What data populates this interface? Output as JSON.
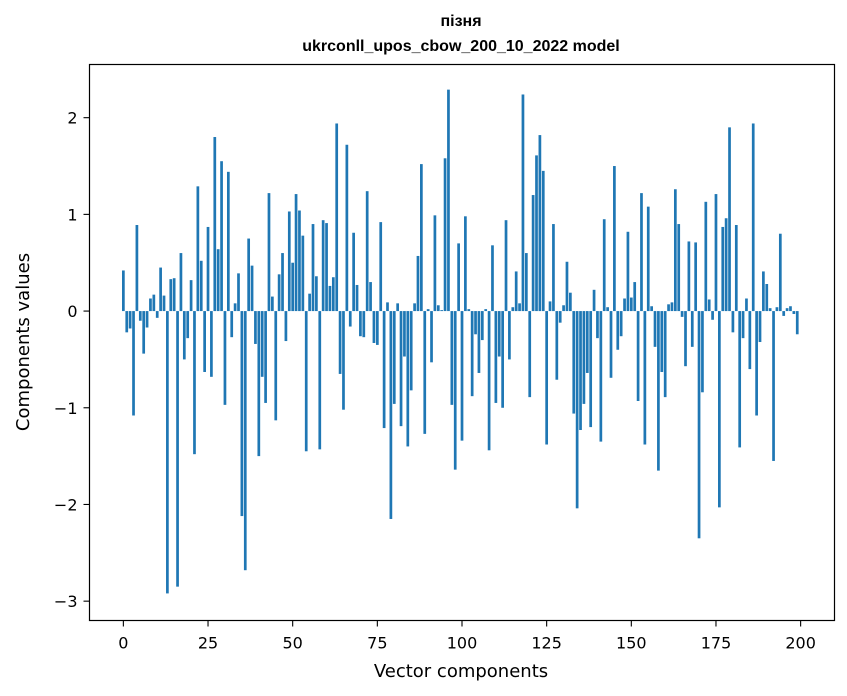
{
  "chart_data": {
    "type": "bar",
    "title": "пізня",
    "subtitle": "ukrconll_upos_cbow_200_10_2022 model",
    "xlabel": "Vector components",
    "ylabel": "Components values",
    "xlim": [
      -10,
      210
    ],
    "ylim": [
      -3.2,
      2.55
    ],
    "xticks": [
      0,
      25,
      50,
      75,
      100,
      125,
      150,
      175,
      200
    ],
    "yticks": [
      -3,
      -2,
      -1,
      0,
      1,
      2
    ],
    "ytick_labels": [
      "−3",
      "−2",
      "−1",
      "0",
      "1",
      "2"
    ],
    "grid": false,
    "color": "#1f77b4",
    "values": [
      0.42,
      -0.22,
      -0.18,
      -1.08,
      0.89,
      -0.1,
      -0.44,
      -0.17,
      0.13,
      0.17,
      -0.07,
      0.45,
      0.16,
      -2.92,
      0.33,
      0.34,
      -2.85,
      0.6,
      -0.5,
      -0.28,
      0.32,
      -1.48,
      1.29,
      0.52,
      -0.63,
      0.87,
      -0.68,
      1.8,
      0.64,
      1.55,
      -0.97,
      1.44,
      -0.27,
      0.08,
      0.39,
      -2.12,
      -2.68,
      0.75,
      0.47,
      -0.34,
      -1.5,
      -0.68,
      -0.95,
      1.22,
      0.15,
      -1.13,
      0.38,
      0.6,
      -0.31,
      1.03,
      0.5,
      1.21,
      1.04,
      0.78,
      -1.45,
      0.18,
      0.9,
      0.36,
      -1.43,
      0.94,
      0.91,
      0.26,
      0.35,
      1.94,
      -0.65,
      -1.02,
      1.72,
      -0.16,
      0.81,
      0.27,
      -0.26,
      -0.27,
      1.24,
      0.3,
      -0.33,
      -0.35,
      0.92,
      -1.21,
      0.09,
      -2.15,
      -0.96,
      0.08,
      -1.19,
      -0.47,
      -1.4,
      -0.82,
      0.08,
      0.57,
      1.52,
      -1.27,
      0.02,
      -0.53,
      0.99,
      0.06,
      0.01,
      1.58,
      2.29,
      -0.97,
      -1.64,
      0.7,
      -1.34,
      0.98,
      0.02,
      -0.88,
      -0.24,
      -0.64,
      -0.3,
      0.02,
      -1.44,
      0.68,
      -0.95,
      -0.47,
      -1.0,
      0.94,
      -0.5,
      0.04,
      0.41,
      0.08,
      2.24,
      0.6,
      -0.89,
      1.2,
      1.61,
      1.82,
      1.45,
      -1.38,
      0.1,
      0.9,
      -0.71,
      -0.12,
      0.06,
      0.51,
      0.19,
      -1.06,
      -2.04,
      -1.23,
      -0.96,
      -0.64,
      -1.2,
      0.22,
      -0.28,
      -1.35,
      0.95,
      0.04,
      -0.69,
      1.5,
      -0.4,
      -0.26,
      0.13,
      0.82,
      0.14,
      0.3,
      -0.93,
      1.22,
      -1.38,
      1.08,
      0.05,
      -0.37,
      -1.65,
      -0.63,
      -0.89,
      0.07,
      0.09,
      1.26,
      0.9,
      -0.06,
      -0.57,
      0.72,
      -0.37,
      0.71,
      -2.35,
      -0.84,
      1.13,
      0.12,
      -0.09,
      1.21,
      -2.03,
      0.87,
      0.96,
      1.9,
      -0.22,
      0.89,
      -1.41,
      -0.28,
      0.13,
      -0.6,
      1.94,
      -1.08,
      -0.32,
      0.41,
      0.28,
      0.03,
      -1.55,
      0.04,
      0.8,
      -0.05,
      0.03,
      0.05,
      -0.03,
      -0.24
    ]
  }
}
